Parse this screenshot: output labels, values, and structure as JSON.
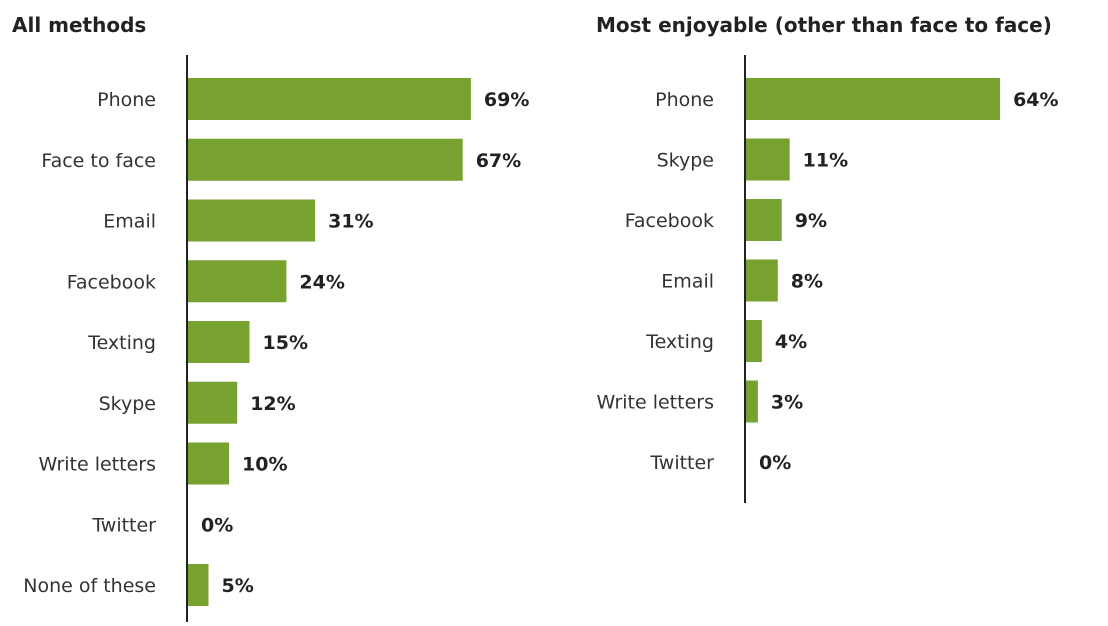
{
  "chart_data": [
    {
      "type": "bar",
      "orientation": "horizontal",
      "title": "All methods",
      "categories": [
        "Phone",
        "Face to face",
        "Email",
        "Facebook",
        "Texting",
        "Skype",
        "Write letters",
        "Twitter",
        "None of these"
      ],
      "values": [
        69,
        67,
        31,
        24,
        15,
        12,
        10,
        0,
        5
      ],
      "value_labels": [
        "69%",
        "67%",
        "31%",
        "24%",
        "15%",
        "12%",
        "10%",
        "0%",
        "5%"
      ],
      "bar_color": "#78a22f",
      "grid": false,
      "legend": "none"
    },
    {
      "type": "bar",
      "orientation": "horizontal",
      "title": "Most enjoyable (other than face to face)",
      "categories": [
        "Phone",
        "Skype",
        "Facebook",
        "Email",
        "Texting",
        "Write letters",
        "Twitter"
      ],
      "values": [
        64,
        11,
        9,
        8,
        4,
        3,
        0
      ],
      "value_labels": [
        "64%",
        "11%",
        "9%",
        "8%",
        "4%",
        "3%",
        "0%"
      ],
      "bar_color": "#78a22f",
      "grid": false,
      "legend": "none"
    }
  ]
}
